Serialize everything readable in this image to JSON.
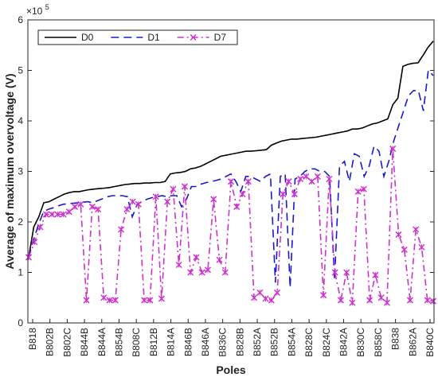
{
  "chart_data": {
    "type": "line",
    "xlabel": "Poles",
    "ylabel": "Average of maximum overvoltage (V)",
    "y_multiplier_label": "×10",
    "y_multiplier_exponent": "5",
    "ylim": [
      0,
      600000
    ],
    "y_ticks": [
      0,
      100000,
      200000,
      300000,
      400000,
      500000,
      600000
    ],
    "y_tick_labels": [
      "0",
      "1",
      "2",
      "3",
      "4",
      "5",
      "6"
    ],
    "x_tick_labels": [
      "B818",
      "B802B",
      "B802C",
      "B844B",
      "B844A",
      "B854B",
      "B808C",
      "B812B",
      "B814A",
      "B846B",
      "B846A",
      "B836C",
      "B828B",
      "B852A",
      "B852B",
      "B854A",
      "B828C",
      "B824C",
      "B842A",
      "B830C",
      "B858C",
      "B838",
      "B862A",
      "B840C"
    ],
    "legend_position": "top-left",
    "series": [
      {
        "name": "D0",
        "color": "#000000",
        "style": "solid",
        "marker": "none",
        "values": [
          130000,
          190000,
          210000,
          238000,
          240000,
          245000,
          250000,
          255000,
          258000,
          260000,
          260000,
          262000,
          264000,
          265000,
          266000,
          267000,
          268000,
          270000,
          272000,
          274000,
          275000,
          276000,
          276000,
          277000,
          277000,
          278000,
          278000,
          280000,
          295000,
          297000,
          298000,
          300000,
          305000,
          307000,
          310000,
          315000,
          320000,
          325000,
          330000,
          332000,
          334000,
          336000,
          338000,
          340000,
          340000,
          341000,
          342000,
          343000,
          352000,
          356000,
          360000,
          362000,
          364000,
          364000,
          365000,
          366000,
          367000,
          368000,
          370000,
          372000,
          374000,
          376000,
          378000,
          380000,
          384000,
          384000,
          386000,
          390000,
          394000,
          396000,
          400000,
          404000,
          432000,
          445000,
          508000,
          512000,
          514000,
          515000,
          530000,
          546000,
          558000
        ]
      },
      {
        "name": "D1",
        "color": "#1a1acc",
        "style": "dashed",
        "marker": "none",
        "values": [
          130000,
          165000,
          195000,
          220000,
          225000,
          228000,
          232000,
          235000,
          236000,
          237000,
          238000,
          239000,
          240000,
          238000,
          242000,
          246000,
          250000,
          252000,
          252000,
          252000,
          250000,
          210000,
          235000,
          240000,
          245000,
          248000,
          250000,
          252000,
          250000,
          252000,
          252000,
          230000,
          245000,
          270000,
          270000,
          275000,
          278000,
          280000,
          282000,
          285000,
          290000,
          295000,
          280000,
          260000,
          290000,
          290000,
          285000,
          280000,
          290000,
          295000,
          80000,
          290000,
          295000,
          70000,
          285000,
          290000,
          300000,
          305000,
          305000,
          300000,
          300000,
          290000,
          85000,
          310000,
          320000,
          280000,
          335000,
          330000,
          290000,
          310000,
          350000,
          340000,
          290000,
          320000,
          360000,
          390000,
          420000,
          450000,
          460000,
          460000,
          420000,
          500000,
          490000
        ]
      },
      {
        "name": "D7",
        "color": "#cc33cc",
        "style": "dashdot",
        "marker": "x",
        "values": [
          130000,
          160000,
          190000,
          215000,
          215000,
          215000,
          215000,
          220000,
          230000,
          235000,
          45000,
          230000,
          225000,
          50000,
          45000,
          45000,
          185000,
          225000,
          240000,
          235000,
          45000,
          45000,
          250000,
          48000,
          240000,
          265000,
          115000,
          270000,
          100000,
          130000,
          100000,
          105000,
          245000,
          125000,
          100000,
          280000,
          230000,
          255000,
          280000,
          50000,
          60000,
          48000,
          45000,
          60000,
          255000,
          280000,
          255000,
          285000,
          290000,
          280000,
          290000,
          55000,
          285000,
          100000,
          45000,
          100000,
          40000,
          260000,
          265000,
          45000,
          95000,
          50000,
          40000,
          345000,
          175000,
          145000,
          45000,
          185000,
          150000,
          45000,
          43000
        ]
      }
    ]
  }
}
